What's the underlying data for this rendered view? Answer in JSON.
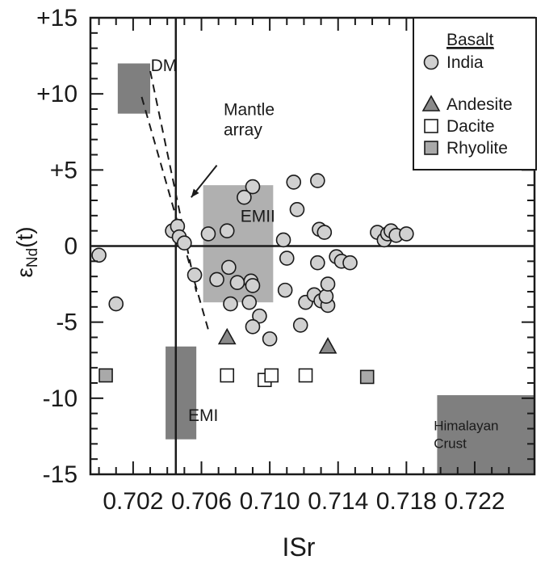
{
  "chart_data": {
    "type": "scatter",
    "xlabel": "ISr",
    "ylabel": "εNd(t)",
    "ylabel_main": "ε",
    "ylabel_sub": "Nd",
    "ylabel_tail": "(t)",
    "xlim": [
      0.6995,
      0.7255
    ],
    "ylim": [
      -15,
      15
    ],
    "xticks": [
      0.702,
      0.706,
      0.71,
      0.714,
      0.718,
      0.722
    ],
    "xtick_labels": [
      "0.702",
      "0.706",
      "0.710",
      "0.714",
      "0.718",
      "0.722"
    ],
    "yticks": [
      15,
      10,
      5,
      0,
      -5,
      -10,
      -15
    ],
    "ytick_labels": [
      "+15",
      "+10",
      "+5",
      "0",
      "-5",
      "-10",
      "-15"
    ],
    "reference_lines": {
      "x": 0.7045,
      "y": 0
    },
    "colors": {
      "basalt_fill": "#d0d0d0",
      "andesite_fill": "#8a8a8a",
      "rhyolite_fill": "#a9a9a9",
      "dacite_fill": "#ffffff",
      "dark_field": "#7f7f7f",
      "light_field": "#b0b0b0",
      "stroke": "#1a1a1a"
    },
    "fields": [
      {
        "label": "DM",
        "x0": 0.7011,
        "x1": 0.703,
        "y0": 8.7,
        "y1": 12.0,
        "shade": "dark",
        "label_x": 0.7038,
        "label_y": 11.5,
        "anchor": "middle"
      },
      {
        "label": "EMII",
        "x0": 0.7061,
        "x1": 0.7102,
        "y0": -3.7,
        "y1": 4.0,
        "shade": "light",
        "label_x": 0.7093,
        "label_y": 1.6,
        "anchor": "middle"
      },
      {
        "label": "EMI",
        "x0": 0.7039,
        "x1": 0.7057,
        "y0": -12.7,
        "y1": -6.6,
        "shade": "dark",
        "label_x": 0.7061,
        "label_y": -11.5,
        "anchor": "middle"
      },
      {
        "label": "Himalayan",
        "label2": "Crust",
        "x0": 0.7198,
        "x1": 0.7255,
        "y0": -15.0,
        "y1": -9.8,
        "shade": "dark",
        "label_x": 0.7196,
        "label_y": -12.1,
        "anchor": "start"
      }
    ],
    "mantle_array": {
      "label": "Mantle",
      "label2": "array",
      "lines": [
        {
          "x1": 0.703,
          "y1": 11.5,
          "x2": 0.7057,
          "y2": -3.0
        },
        {
          "x1": 0.7025,
          "y1": 9.8,
          "x2": 0.7064,
          "y2": -5.5
        }
      ],
      "label_x": 0.7073,
      "label_y": 8.6,
      "arrow": {
        "x1": 0.7069,
        "y1": 5.3,
        "x2": 0.7054,
        "y2": 3.2
      }
    },
    "series": [
      {
        "name": "India",
        "marker": "circle",
        "points": [
          {
            "x": 0.7,
            "y": -0.6
          },
          {
            "x": 0.701,
            "y": -3.8
          },
          {
            "x": 0.7043,
            "y": 1.0
          },
          {
            "x": 0.7046,
            "y": 1.3
          },
          {
            "x": 0.7047,
            "y": 0.6
          },
          {
            "x": 0.705,
            "y": 0.2
          },
          {
            "x": 0.7056,
            "y": -1.9
          },
          {
            "x": 0.7064,
            "y": 0.8
          },
          {
            "x": 0.7075,
            "y": 1.0
          },
          {
            "x": 0.7069,
            "y": -2.2
          },
          {
            "x": 0.7076,
            "y": -1.4
          },
          {
            "x": 0.7081,
            "y": -2.4
          },
          {
            "x": 0.7077,
            "y": -3.8
          },
          {
            "x": 0.7085,
            "y": 3.2
          },
          {
            "x": 0.709,
            "y": 3.9
          },
          {
            "x": 0.7089,
            "y": -2.3
          },
          {
            "x": 0.709,
            "y": -2.6
          },
          {
            "x": 0.7088,
            "y": -3.7
          },
          {
            "x": 0.7094,
            "y": -4.6
          },
          {
            "x": 0.709,
            "y": -5.3
          },
          {
            "x": 0.71,
            "y": -6.1
          },
          {
            "x": 0.7114,
            "y": 4.2
          },
          {
            "x": 0.7116,
            "y": 2.4
          },
          {
            "x": 0.7108,
            "y": 0.4
          },
          {
            "x": 0.711,
            "y": -0.8
          },
          {
            "x": 0.7109,
            "y": -2.9
          },
          {
            "x": 0.7118,
            "y": -5.2
          },
          {
            "x": 0.7121,
            "y": -3.7
          },
          {
            "x": 0.7128,
            "y": 4.3
          },
          {
            "x": 0.7129,
            "y": 1.1
          },
          {
            "x": 0.7132,
            "y": 0.9
          },
          {
            "x": 0.7128,
            "y": -1.1
          },
          {
            "x": 0.7126,
            "y": -3.2
          },
          {
            "x": 0.713,
            "y": -3.6
          },
          {
            "x": 0.7134,
            "y": -3.9
          },
          {
            "x": 0.7133,
            "y": -3.3
          },
          {
            "x": 0.7134,
            "y": -2.5
          },
          {
            "x": 0.7139,
            "y": -0.7
          },
          {
            "x": 0.7142,
            "y": -1.0
          },
          {
            "x": 0.7147,
            "y": -1.1
          },
          {
            "x": 0.7163,
            "y": 0.9
          },
          {
            "x": 0.7167,
            "y": 0.4
          },
          {
            "x": 0.7169,
            "y": 0.8
          },
          {
            "x": 0.7171,
            "y": 1.0
          },
          {
            "x": 0.7174,
            "y": 0.7
          },
          {
            "x": 0.718,
            "y": 0.8
          }
        ]
      },
      {
        "name": "Andesite",
        "marker": "triangle",
        "points": [
          {
            "x": 0.7075,
            "y": -6.0
          },
          {
            "x": 0.7134,
            "y": -6.6
          }
        ]
      },
      {
        "name": "Dacite",
        "marker": "square-open",
        "points": [
          {
            "x": 0.7075,
            "y": -8.5
          },
          {
            "x": 0.7097,
            "y": -8.8
          },
          {
            "x": 0.7101,
            "y": -8.5
          },
          {
            "x": 0.7121,
            "y": -8.5
          }
        ]
      },
      {
        "name": "Rhyolite",
        "marker": "square-filled",
        "points": [
          {
            "x": 0.7004,
            "y": -8.5
          },
          {
            "x": 0.7157,
            "y": -8.6
          }
        ]
      }
    ],
    "legend": {
      "placement": "top-right",
      "heading": "Basalt",
      "items": [
        {
          "label": "India",
          "marker": "circle"
        },
        {
          "label": "Andesite",
          "marker": "triangle"
        },
        {
          "label": "Dacite",
          "marker": "square-open"
        },
        {
          "label": "Rhyolite",
          "marker": "square-filled"
        }
      ]
    }
  }
}
